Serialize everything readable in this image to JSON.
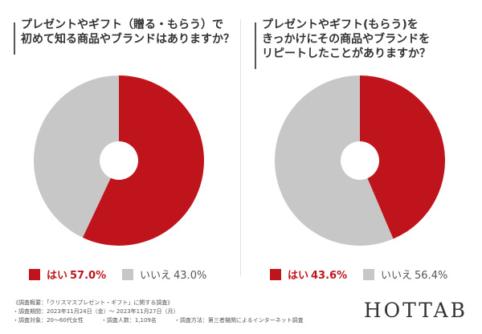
{
  "colors": {
    "yes": "#c0141c",
    "no": "#c7c7c7"
  },
  "chart_data": [
    {
      "type": "pie",
      "title_lines": [
        "プレゼントやギフト（贈る・もらう）で",
        "初めて知る商品やブランドはありますか？"
      ],
      "categories": [
        "はい",
        "いいえ"
      ],
      "values": [
        57.0,
        43.0
      ],
      "value_labels": [
        "57.0%",
        "43.0%"
      ],
      "donut": true,
      "legend": "bottom"
    },
    {
      "type": "pie",
      "title_lines": [
        "プレゼントやギフト(もらう)を",
        "きっかけにその商品やブランドを",
        "リピートしたことがありますか？"
      ],
      "categories": [
        "はい",
        "いいえ"
      ],
      "values": [
        43.6,
        56.4
      ],
      "value_labels": [
        "43.6%",
        "56.4%"
      ],
      "donut": true,
      "legend": "bottom"
    }
  ],
  "footer": {
    "line1": "《調査概要：「クリスマスプレゼント・ギフト」に関する調査》",
    "line2": "・調査期間：2023年11月24日（金）～ 2023年11月27日（月）",
    "line3a": "・調査対象：20〜60代女性",
    "line3b": "・調査人数：1,109名",
    "line3c": "・調査方法：第三者機関によるインターネット調査"
  },
  "brand": "HOTTAB"
}
